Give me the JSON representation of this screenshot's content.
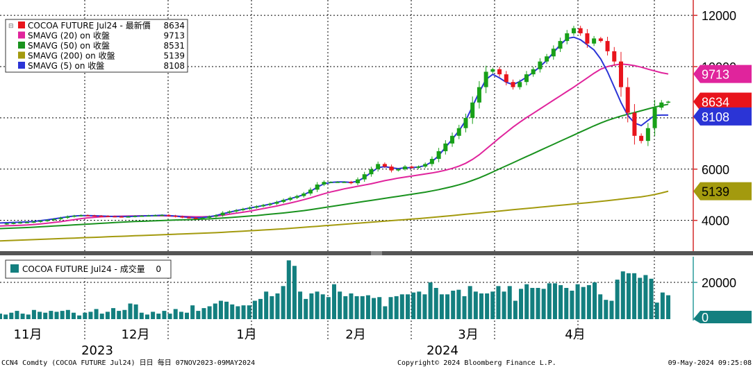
{
  "chart_data": [
    {
      "type": "candlestick",
      "title": "",
      "legend": {
        "placement": "top-left",
        "entries": [
          {
            "label": "COCOA FUTURE Jul24 - 最新價",
            "value": "8634",
            "color": "#e8141c"
          },
          {
            "label": "SMAVG (20)  on 收盤",
            "value": "9713",
            "color": "#e0249c"
          },
          {
            "label": "SMAVG (50)  on 收盤",
            "value": "8531",
            "color": "#19921e"
          },
          {
            "label": "SMAVG (200)  on 收盤",
            "value": "5139",
            "color": "#a39a0e"
          },
          {
            "label": "SMAVG (5)  on 收盤",
            "value": "8108",
            "color": "#2b34d6"
          }
        ]
      },
      "y_ticks": [
        "12000",
        "10000",
        "8000",
        "6000",
        "4000"
      ],
      "ylim": [
        2800,
        12600
      ],
      "grid": true,
      "last_value_tags": [
        {
          "label": "9713",
          "value": 9713,
          "color": "#e0249c"
        },
        {
          "label": "8634",
          "value": 8634,
          "color": "#e8141c"
        },
        {
          "label": "8108",
          "value": 8108,
          "color": "#2b34d6"
        },
        {
          "label": "5139",
          "value": 5139,
          "color": "#a39a0e"
        }
      ],
      "series": [
        {
          "name": "COCOA FUTURE Jul24",
          "kind": "close",
          "values": [
            3860,
            3880,
            3900,
            3920,
            3930,
            3950,
            3980,
            4010,
            4050,
            4100,
            4150,
            4180,
            4200,
            4190,
            4180,
            4170,
            4160,
            4150,
            4140,
            4150,
            4170,
            4180,
            4190,
            4200,
            4210,
            4180,
            4150,
            4120,
            4100,
            4080,
            4100,
            4150,
            4200,
            4300,
            4350,
            4400,
            4450,
            4500,
            4550,
            4600,
            4650,
            4720,
            4800,
            4880,
            4950,
            5050,
            5200,
            5400,
            5500,
            5500,
            5500,
            5500,
            5450,
            5600,
            5800,
            6000,
            6200,
            6100,
            5950,
            6000,
            6100,
            6050,
            6100,
            6200,
            6400,
            6700,
            7000,
            7300,
            7600,
            8000,
            8600,
            9200,
            9800,
            9900,
            9700,
            9400,
            9200,
            9400,
            9700,
            9900,
            10200,
            10400,
            10700,
            11000,
            11300,
            11500,
            11300,
            10900,
            11100,
            11000,
            10600,
            10200,
            9200,
            8200,
            7300,
            7100,
            7600,
            8400,
            8600,
            8634
          ]
        },
        {
          "name": "SMAVG (5)",
          "kind": "line",
          "values": [
            3900,
            3910,
            3920,
            3930,
            3940,
            3960,
            3990,
            4020,
            4060,
            4100,
            4140,
            4170,
            4190,
            4190,
            4180,
            4170,
            4160,
            4150,
            4150,
            4150,
            4160,
            4170,
            4180,
            4190,
            4200,
            4190,
            4170,
            4140,
            4120,
            4100,
            4110,
            4140,
            4190,
            4260,
            4320,
            4380,
            4430,
            4480,
            4530,
            4580,
            4630,
            4700,
            4770,
            4850,
            4920,
            5000,
            5130,
            5300,
            5430,
            5480,
            5500,
            5500,
            5480,
            5530,
            5680,
            5870,
            6060,
            6100,
            6050,
            6020,
            6050,
            6060,
            6080,
            6140,
            6290,
            6530,
            6850,
            7170,
            7500,
            7900,
            8450,
            9000,
            9500,
            9700,
            9560,
            9390,
            9300,
            9420,
            9590,
            9780,
            10000,
            10250,
            10550,
            10850,
            11100,
            11150,
            11050,
            10850,
            10650,
            10300,
            9800,
            9200,
            8600,
            8100,
            7800,
            7700,
            7900,
            8100,
            8108,
            8108
          ]
        },
        {
          "name": "SMAVG (20)",
          "kind": "line",
          "values": [
            3780,
            3790,
            3800,
            3810,
            3820,
            3840,
            3860,
            3890,
            3920,
            3950,
            3990,
            4030,
            4070,
            4100,
            4120,
            4140,
            4150,
            4160,
            4165,
            4170,
            4175,
            4180,
            4180,
            4180,
            4180,
            4175,
            4165,
            4155,
            4145,
            4140,
            4140,
            4150,
            4170,
            4200,
            4240,
            4280,
            4320,
            4360,
            4410,
            4460,
            4510,
            4560,
            4620,
            4680,
            4740,
            4810,
            4880,
            4960,
            5040,
            5110,
            5170,
            5230,
            5280,
            5330,
            5380,
            5430,
            5490,
            5550,
            5600,
            5650,
            5690,
            5730,
            5770,
            5810,
            5850,
            5900,
            5960,
            6030,
            6120,
            6230,
            6380,
            6560,
            6780,
            7000,
            7220,
            7430,
            7640,
            7830,
            8010,
            8180,
            8350,
            8520,
            8690,
            8860,
            9030,
            9200,
            9380,
            9560,
            9740,
            9900,
            10000,
            10060,
            10100,
            10080,
            10040,
            9980,
            9900,
            9830,
            9760,
            9713
          ]
        },
        {
          "name": "SMAVG (50)",
          "kind": "line",
          "values": [
            3680,
            3690,
            3700,
            3710,
            3720,
            3735,
            3750,
            3765,
            3780,
            3795,
            3810,
            3825,
            3840,
            3855,
            3870,
            3885,
            3900,
            3915,
            3930,
            3945,
            3955,
            3965,
            3975,
            3985,
            3995,
            4005,
            4015,
            4020,
            4030,
            4040,
            4050,
            4060,
            4075,
            4090,
            4110,
            4130,
            4150,
            4170,
            4190,
            4215,
            4240,
            4265,
            4290,
            4320,
            4350,
            4380,
            4420,
            4460,
            4500,
            4540,
            4580,
            4620,
            4660,
            4700,
            4740,
            4780,
            4820,
            4860,
            4900,
            4940,
            4980,
            5020,
            5060,
            5100,
            5150,
            5200,
            5260,
            5320,
            5390,
            5470,
            5560,
            5660,
            5770,
            5890,
            6010,
            6130,
            6250,
            6370,
            6490,
            6610,
            6730,
            6850,
            6970,
            7090,
            7210,
            7330,
            7450,
            7570,
            7690,
            7800,
            7900,
            7990,
            8070,
            8140,
            8210,
            8280,
            8350,
            8420,
            8480,
            8531
          ]
        },
        {
          "name": "SMAVG (200)",
          "kind": "line",
          "values": [
            3200,
            3210,
            3220,
            3230,
            3240,
            3250,
            3260,
            3270,
            3280,
            3290,
            3300,
            3310,
            3320,
            3330,
            3340,
            3350,
            3360,
            3370,
            3380,
            3390,
            3400,
            3410,
            3420,
            3430,
            3440,
            3450,
            3460,
            3470,
            3480,
            3490,
            3500,
            3510,
            3520,
            3535,
            3550,
            3565,
            3580,
            3595,
            3610,
            3625,
            3640,
            3655,
            3670,
            3690,
            3710,
            3730,
            3750,
            3770,
            3790,
            3810,
            3830,
            3850,
            3870,
            3890,
            3910,
            3930,
            3950,
            3970,
            3990,
            4010,
            4030,
            4050,
            4070,
            4090,
            4115,
            4140,
            4165,
            4190,
            4215,
            4240,
            4265,
            4290,
            4315,
            4340,
            4365,
            4390,
            4415,
            4440,
            4465,
            4490,
            4515,
            4540,
            4565,
            4590,
            4615,
            4640,
            4665,
            4690,
            4715,
            4740,
            4770,
            4800,
            4830,
            4860,
            4890,
            4920,
            4960,
            5010,
            5070,
            5139
          ]
        }
      ]
    },
    {
      "type": "bar",
      "legend": {
        "placement": "top-left",
        "label": "COCOA FUTURE Jul24 - 成交量",
        "value": "0",
        "color": "#137f7f"
      },
      "y_ticks": [
        "20000"
      ],
      "ylim": [
        0,
        34000
      ],
      "last_value_tags": [
        {
          "label": "0",
          "value": 0,
          "color": "#137f7f"
        }
      ],
      "values": [
        3000,
        2500,
        3500,
        4500,
        3000,
        2500,
        5000,
        4000,
        3500,
        4500,
        4000,
        4500,
        5000,
        3500,
        2000,
        3500,
        4000,
        5500,
        3000,
        4000,
        6000,
        4500,
        5000,
        8500,
        8000,
        3500,
        2500,
        4000,
        3000,
        4500,
        3000,
        5500,
        4000,
        3500,
        7500,
        4500,
        6000,
        7000,
        8500,
        10000,
        9500,
        8000,
        7000,
        7500,
        7500,
        10000,
        11000,
        15000,
        12500,
        14000,
        18000,
        32000,
        29000,
        15000,
        11000,
        14000,
        15000,
        13500,
        12000,
        19000,
        15000,
        12500,
        14000,
        12500,
        12500,
        13000,
        11500,
        12000,
        7000,
        12000,
        12500,
        13500,
        13500,
        14500,
        15000,
        13500,
        20000,
        17000,
        13500,
        13500,
        15500,
        16000,
        12500,
        18000,
        15000,
        14000,
        14000,
        15000,
        18000,
        15000,
        18000,
        10000,
        16500,
        19000,
        17000,
        17000,
        16500,
        19500,
        19500,
        18500,
        17000,
        15500,
        19000,
        17500,
        18500,
        20000,
        13500,
        10500,
        10000,
        21500,
        26000,
        25000,
        25000,
        22500,
        24000,
        22000,
        9000,
        14500,
        13000
      ]
    }
  ],
  "x_axis": {
    "months": [
      "11月",
      "12月",
      "1月",
      "2月",
      "3月",
      "4月"
    ],
    "years": [
      "2023",
      "2024"
    ]
  },
  "footer": {
    "left": "CCN4 Comdty (COCOA FUTURE       Jul24) 日日  每日 07NOV2023-09MAY2024",
    "center": "Copyright© 2024 Bloomberg Finance L.P.",
    "right": "09-May-2024 09:25:08"
  }
}
